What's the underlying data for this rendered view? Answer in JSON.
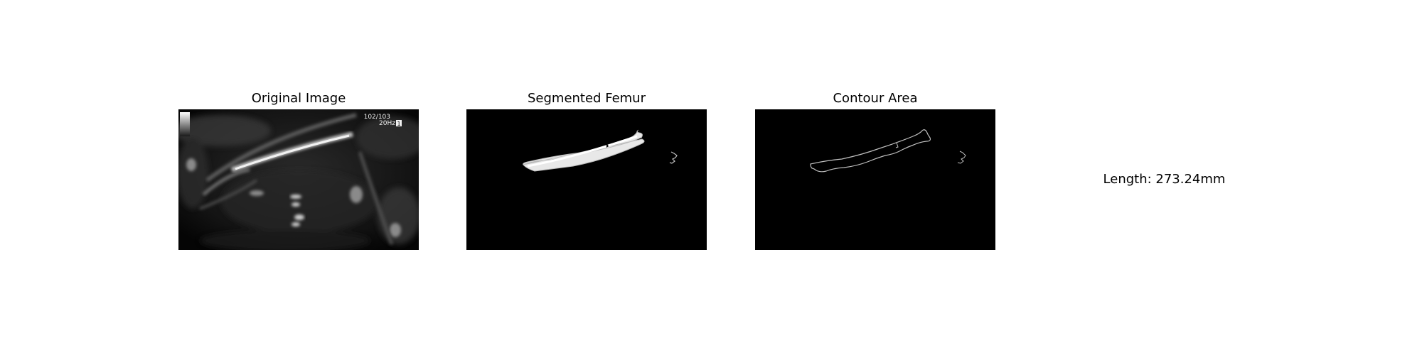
{
  "panels": [
    {
      "title": "Original Image"
    },
    {
      "title": "Segmented Femur"
    },
    {
      "title": "Contour Area"
    }
  ],
  "ultrasound_overlay": {
    "frame_counter": "102/103",
    "frequency": "20Hz",
    "frequency_suffix": "1"
  },
  "measurement": {
    "length_text": "Length: 273.24mm"
  },
  "colors": {
    "background": "#ffffff",
    "image_background": "#000000",
    "segment": "#e8e8e8",
    "contour": "#bfbfbf"
  }
}
